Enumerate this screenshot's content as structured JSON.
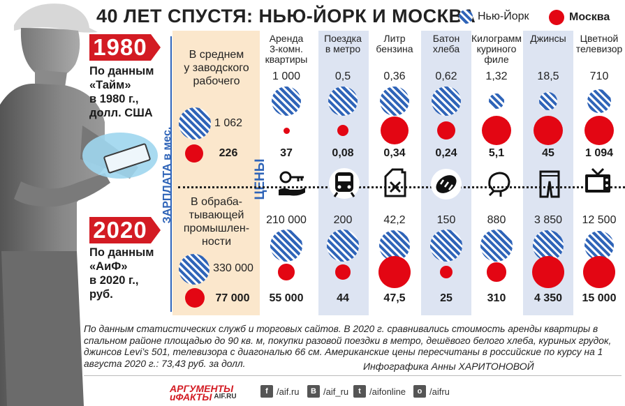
{
  "title": "40 ЛЕТ СПУСТЯ: НЬЮ-ЙОРК И МОСКВА",
  "legend": {
    "ny": "Нью-Йорк",
    "moscow": "Москва"
  },
  "colors": {
    "ny_blue": "#2f64b8",
    "moscow_red": "#e30613",
    "year_red": "#d31b23",
    "band_blue": "#dde4f2",
    "salary_band": "#fbe7cc"
  },
  "year1980": {
    "year": "1980",
    "source": [
      "По данным",
      "«Тайм»",
      "в 1980 г.,",
      "долл. США"
    ]
  },
  "year2020": {
    "year": "2020",
    "source": [
      "По данным",
      "«АиФ»",
      "в 2020 г.,",
      "руб."
    ]
  },
  "salary_label": "ЗАРПЛАТА в мес.",
  "prices_label": "ЦЕНЫ",
  "salary_1980": {
    "heading": [
      "В среднем",
      "у заводского",
      "рабочего"
    ],
    "ny": "1 062",
    "moscow": "226"
  },
  "salary_2020": {
    "heading": [
      "В обраба-",
      "тывающей",
      "промышлен-",
      "ности"
    ],
    "ny": "330 000",
    "moscow": "77 000"
  },
  "columns": [
    {
      "head": [
        "Аренда",
        "3-комн.",
        "квартиры"
      ],
      "icon": "key-hand-icon",
      "ny1980": "1 000",
      "msk1980": "37",
      "ny2020": "210 000",
      "msk2020": "55 000"
    },
    {
      "head": [
        "Поездка",
        "в метро"
      ],
      "icon": "metro-train-icon",
      "ny1980": "0,5",
      "msk1980": "0,08",
      "ny2020": "200",
      "msk2020": "44"
    },
    {
      "head": [
        "Литр",
        "бензина"
      ],
      "icon": "fuel-canister-icon",
      "ny1980": "0,36",
      "msk1980": "0,34",
      "ny2020": "42,2",
      "msk2020": "47,5"
    },
    {
      "head": [
        "Батон",
        "хлеба"
      ],
      "icon": "bread-loaf-icon",
      "ny1980": "0,62",
      "msk1980": "0,24",
      "ny2020": "150",
      "msk2020": "25"
    },
    {
      "head": [
        "Килограмм",
        "куриного",
        "филе"
      ],
      "icon": "chicken-icon",
      "ny1980": "1,32",
      "msk1980": "5,1",
      "ny2020": "880",
      "msk2020": "310"
    },
    {
      "head": [
        "Джинсы"
      ],
      "icon": "jeans-icon",
      "ny1980": "18,5",
      "msk1980": "45",
      "ny2020": "3 850",
      "msk2020": "4 350"
    },
    {
      "head": [
        "Цветной",
        "телевизор"
      ],
      "icon": "tv-icon",
      "ny1980": "710",
      "msk1980": "1 094",
      "ny2020": "12 500",
      "msk2020": "15 000"
    }
  ],
  "footnote": "По данным статистических служб и торговых сайтов. В 2020 г. сравнивались стоимость аренды квартиры в спальном районе площадью до 90 кв. м, покупки разовой поездки в метро, дешёвого белого хлеба, куриных грудок, джинсов Levi’s 501, телевизора с диагональю 66 см. Американские цены пересчитаны в российские по курсу на 1 августа 2020 г.: 73,43 руб. за долл.",
  "author": "Инфографика Анны ХАРИТОНОВОЙ",
  "footer": {
    "logo_top": "АРГУМЕНТЫ",
    "logo_bottom": "иФАКТЫ",
    "logo_site": "AIF.RU",
    "social": [
      {
        "icon": "facebook-icon",
        "glyph": "f",
        "label": "/aif.ru"
      },
      {
        "icon": "vk-icon",
        "glyph": "В",
        "label": "/aif_ru"
      },
      {
        "icon": "twitter-icon",
        "glyph": "t",
        "label": "/aifonline"
      },
      {
        "icon": "odnoklassniki-icon",
        "glyph": "о",
        "label": "/aifru"
      }
    ]
  },
  "bubble_sizes": {
    "salary_1980": {
      "ny": 1062,
      "moscow": 226
    },
    "salary_2020": {
      "ny": 330000,
      "moscow": 77000
    },
    "ny1980": [
      1000,
      0.5,
      0.36,
      0.62,
      1.32,
      18.5,
      710
    ],
    "msk1980": [
      37,
      0.08,
      0.34,
      0.24,
      5.1,
      45,
      1094
    ],
    "ny2020": [
      210000,
      200,
      42.2,
      150,
      880,
      3850,
      12500
    ],
    "msk2020": [
      55000,
      44,
      47.5,
      25,
      310,
      4350,
      15000
    ]
  }
}
